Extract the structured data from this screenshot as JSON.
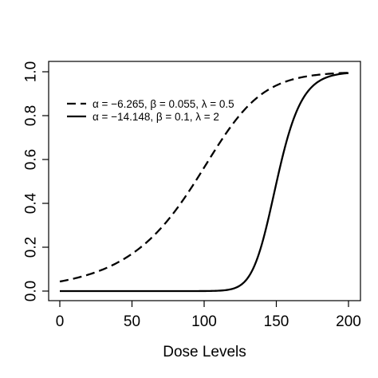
{
  "chart_data": {
    "type": "line",
    "title": "",
    "xlabel": "Dose Levels",
    "ylabel": "",
    "xlim": [
      0,
      200
    ],
    "ylim": [
      0,
      1
    ],
    "x_ticks": [
      "0",
      "50",
      "100",
      "150",
      "200"
    ],
    "y_ticks": [
      "0.0",
      "0.2",
      "0.4",
      "0.6",
      "0.8",
      "1.0"
    ],
    "grid": false,
    "legend_position": "top-left",
    "series": [
      {
        "name": "α = −6.265,  β = 0.055,  λ = 0.5",
        "line_style": "dashed",
        "color": "#000000",
        "alpha": -6.265,
        "beta": 0.055,
        "lambda": 0.5
      },
      {
        "name": "α = −14.148,  β = 0.1,  λ = 2",
        "line_style": "solid",
        "color": "#000000",
        "alpha": -14.148,
        "beta": 0.1,
        "lambda": 2
      }
    ]
  }
}
